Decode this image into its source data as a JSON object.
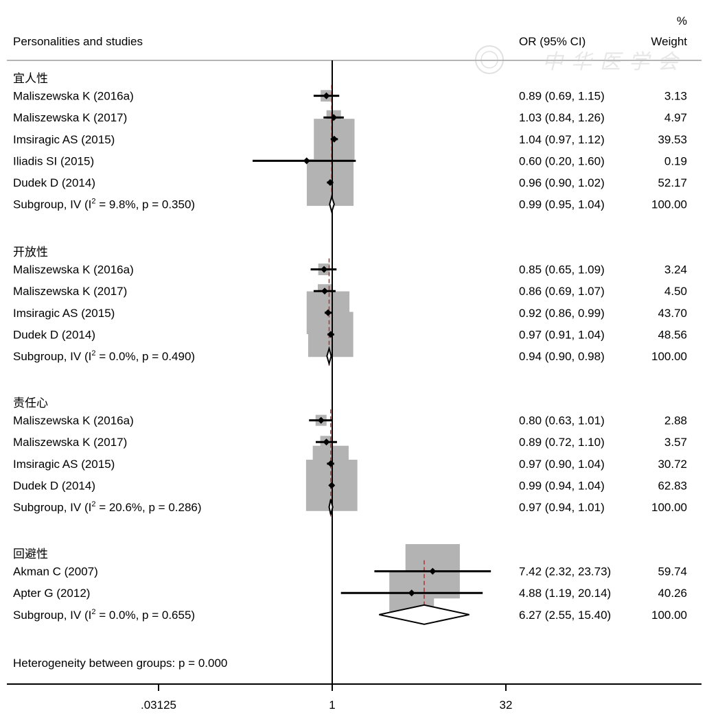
{
  "chart_data": {
    "type": "forest",
    "scale": "log2",
    "xticks": [
      ".03125",
      "1",
      "32"
    ],
    "xtick_values": [
      0.03125,
      1,
      32
    ],
    "reference_line": 1,
    "header": {
      "studies": "Personalities and studies",
      "effect": "OR (95% CI)",
      "weight_top": "%",
      "weight": "Weight"
    },
    "groups": [
      {
        "label": "宜人性",
        "studies": [
          {
            "study": "Maliszewska K (2016a)",
            "or": 0.89,
            "lo": 0.69,
            "hi": 1.15,
            "ci_text": "0.89 (0.69, 1.15)",
            "weight": "3.13"
          },
          {
            "study": "Maliszewska K (2017)",
            "or": 1.03,
            "lo": 0.84,
            "hi": 1.26,
            "ci_text": "1.03 (0.84, 1.26)",
            "weight": "4.97"
          },
          {
            "study": "Imsiragic AS (2015)",
            "or": 1.04,
            "lo": 0.97,
            "hi": 1.12,
            "ci_text": "1.04 (0.97, 1.12)",
            "weight": "39.53"
          },
          {
            "study": "Iliadis SI (2015)",
            "or": 0.6,
            "lo": 0.2,
            "hi": 1.6,
            "ci_text": "0.60 (0.20, 1.60)",
            "weight": "0.19"
          },
          {
            "study": "Dudek D (2014)",
            "or": 0.96,
            "lo": 0.9,
            "hi": 1.02,
            "ci_text": "0.96 (0.90, 1.02)",
            "weight": "52.17"
          }
        ],
        "subgroup": {
          "label_pre": "Subgroup, IV (I",
          "sup": "2",
          "label_post": " = 9.8%, p = 0.350)",
          "or": 0.99,
          "lo": 0.95,
          "hi": 1.04,
          "ci_text": "0.99 (0.95, 1.04)",
          "weight": "100.00"
        }
      },
      {
        "label": "开放性",
        "studies": [
          {
            "study": "Maliszewska K (2016a)",
            "or": 0.85,
            "lo": 0.65,
            "hi": 1.09,
            "ci_text": "0.85 (0.65, 1.09)",
            "weight": "3.24"
          },
          {
            "study": "Maliszewska K (2017)",
            "or": 0.86,
            "lo": 0.69,
            "hi": 1.07,
            "ci_text": "0.86 (0.69, 1.07)",
            "weight": "4.50"
          },
          {
            "study": "Imsiragic AS (2015)",
            "or": 0.92,
            "lo": 0.86,
            "hi": 0.99,
            "ci_text": "0.92 (0.86, 0.99)",
            "weight": "43.70"
          },
          {
            "study": "Dudek D (2014)",
            "or": 0.97,
            "lo": 0.91,
            "hi": 1.04,
            "ci_text": "0.97 (0.91, 1.04)",
            "weight": "48.56"
          }
        ],
        "subgroup": {
          "label_pre": "Subgroup, IV (I",
          "sup": "2",
          "label_post": " = 0.0%, p = 0.490)",
          "or": 0.94,
          "lo": 0.9,
          "hi": 0.98,
          "ci_text": "0.94 (0.90, 0.98)",
          "weight": "100.00"
        }
      },
      {
        "label": "责任心",
        "studies": [
          {
            "study": "Maliszewska K (2016a)",
            "or": 0.8,
            "lo": 0.63,
            "hi": 1.01,
            "ci_text": "0.80 (0.63, 1.01)",
            "weight": "2.88"
          },
          {
            "study": "Maliszewska K (2017)",
            "or": 0.89,
            "lo": 0.72,
            "hi": 1.1,
            "ci_text": "0.89 (0.72, 1.10)",
            "weight": "3.57"
          },
          {
            "study": "Imsiragic AS (2015)",
            "or": 0.97,
            "lo": 0.9,
            "hi": 1.04,
            "ci_text": "0.97 (0.90, 1.04)",
            "weight": "30.72"
          },
          {
            "study": "Dudek D (2014)",
            "or": 0.99,
            "lo": 0.94,
            "hi": 1.04,
            "ci_text": "0.99 (0.94, 1.04)",
            "weight": "62.83"
          }
        ],
        "subgroup": {
          "label_pre": "Subgroup, IV (I",
          "sup": "2",
          "label_post": " = 20.6%, p = 0.286)",
          "or": 0.97,
          "lo": 0.94,
          "hi": 1.01,
          "ci_text": "0.97 (0.94, 1.01)",
          "weight": "100.00"
        }
      },
      {
        "label": "回避性",
        "studies": [
          {
            "study": "Akman C (2007)",
            "or": 7.42,
            "lo": 2.32,
            "hi": 23.73,
            "ci_text": "7.42 (2.32, 23.73)",
            "weight": "59.74"
          },
          {
            "study": "Apter G (2012)",
            "or": 4.88,
            "lo": 1.19,
            "hi": 20.14,
            "ci_text": "4.88 (1.19, 20.14)",
            "weight": "40.26"
          }
        ],
        "subgroup": {
          "label_pre": "Subgroup, IV (I",
          "sup": "2",
          "label_post": " = 0.0%, p = 0.655)",
          "or": 6.27,
          "lo": 2.55,
          "hi": 15.4,
          "ci_text": "6.27 (2.55, 15.40)",
          "weight": "100.00"
        }
      }
    ],
    "heterogeneity": "Heterogeneity between groups: p = 0.000",
    "watermark": "中华医学会"
  }
}
